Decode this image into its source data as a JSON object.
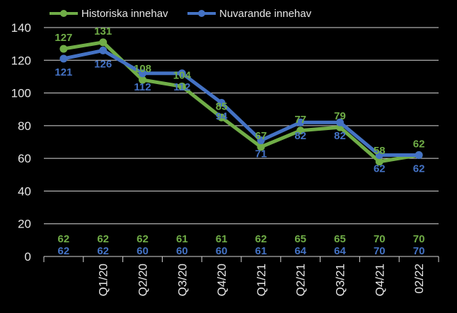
{
  "chart_data": {
    "type": "line",
    "x": [
      "",
      "Q1/20",
      "Q2/20",
      "Q3/20",
      "Q4/20",
      "Q1/21",
      "Q2/21",
      "Q3/21",
      "Q4/21",
      "02/22"
    ],
    "ylim": [
      0,
      140
    ],
    "yticks": [
      0,
      20,
      40,
      60,
      80,
      100,
      120,
      140
    ],
    "grid": true,
    "legend": "top",
    "series": [
      {
        "name": "Historiska innehav",
        "color": "#70ad47",
        "values": [
          127,
          131,
          108,
          104,
          85,
          67,
          77,
          79,
          58,
          62
        ],
        "counts": [
          62,
          62,
          62,
          61,
          61,
          62,
          65,
          65,
          70,
          70
        ]
      },
      {
        "name": "Nuvarande innehav",
        "color": "#4472c4",
        "values": [
          121,
          126,
          112,
          112,
          94,
          71,
          82,
          82,
          62,
          62
        ],
        "counts": [
          62,
          62,
          60,
          60,
          60,
          61,
          64,
          64,
          70,
          70
        ]
      }
    ]
  }
}
